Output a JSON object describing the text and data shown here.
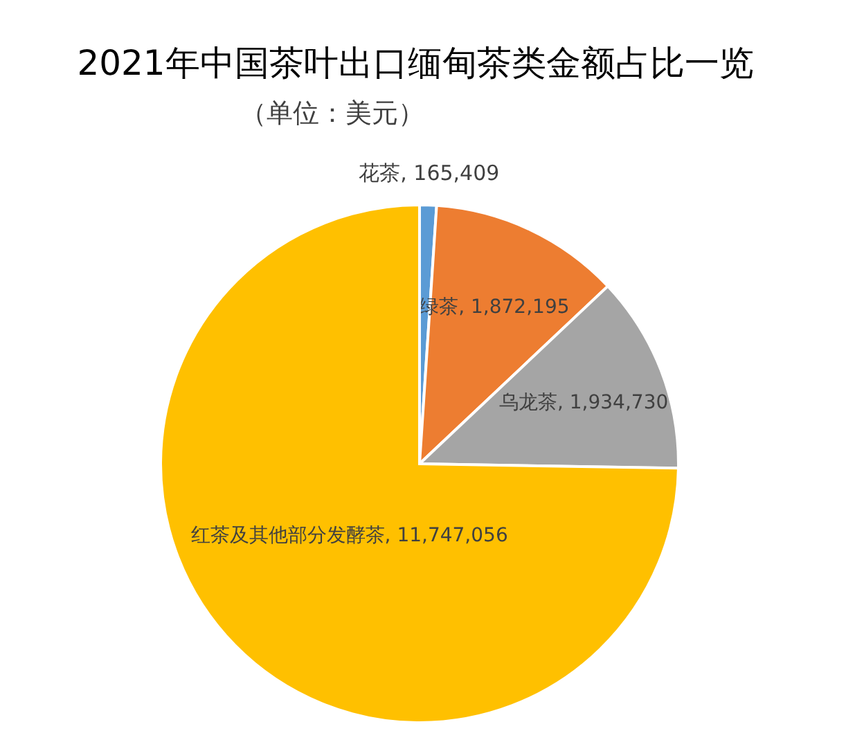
{
  "chart_data": {
    "type": "pie",
    "title": "2021年中国茶叶出口缅甸茶类金额占比一览",
    "subtitle": "（单位：美元）",
    "categories": [
      "花茶",
      "绿茶",
      "乌龙茶",
      "红茶及其他部分发酵茶"
    ],
    "values": [
      165409,
      1872195,
      1934730,
      11747056
    ],
    "value_labels": [
      "165,409",
      "1,872,195",
      "1,934,730",
      "11,747,056"
    ],
    "colors": [
      "#5b9bd5",
      "#ed7d31",
      "#a5a5a5",
      "#ffc000"
    ]
  }
}
